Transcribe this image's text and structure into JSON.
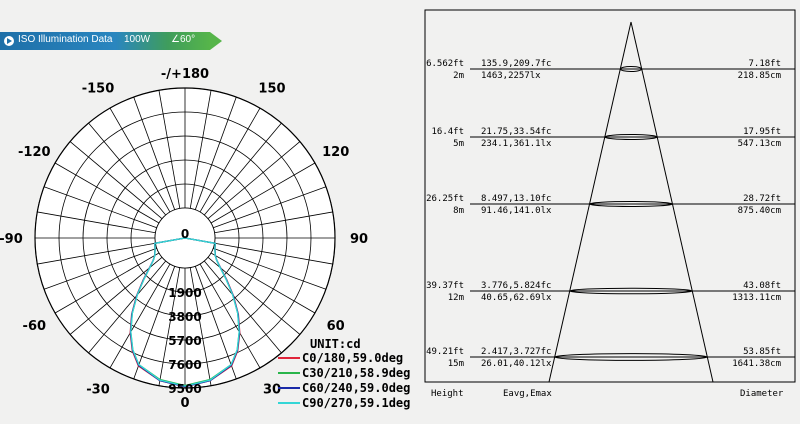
{
  "banner": {
    "title": "ISO Illumination  Data",
    "power": "100W",
    "angle": "∠60°",
    "icon": "play-circle-icon"
  },
  "chart_data": [
    {
      "type": "polar",
      "unit_label": "UNIT:cd",
      "angle_labels": [
        "-/+180",
        "150",
        "120",
        "90",
        "60",
        "30",
        "0",
        "-30",
        "-60",
        "-90",
        "-120",
        "-150"
      ],
      "radial_labels": [
        "0",
        "1900",
        "3800",
        "5700",
        "7600",
        "9500"
      ],
      "radial_values": [
        0,
        1900,
        3800,
        5700,
        7600,
        9500
      ],
      "rmax": 9500,
      "series": [
        {
          "name": "C0/180,59.0deg",
          "color": "#e0243a",
          "angles": [
            0,
            10,
            20,
            25,
            30,
            35,
            40,
            45,
            50,
            55,
            60,
            70,
            80,
            90
          ],
          "values": [
            9400,
            9100,
            8400,
            7500,
            6300,
            5000,
            3600,
            2300,
            1300,
            700,
            400,
            150,
            60,
            0
          ]
        },
        {
          "name": "C30/210,58.9deg",
          "color": "#29b54a",
          "angles": [
            0,
            10,
            20,
            25,
            30,
            35,
            40,
            45,
            50,
            55,
            60,
            70,
            80,
            90
          ],
          "values": [
            9300,
            9000,
            8300,
            7400,
            6200,
            4900,
            3500,
            2200,
            1250,
            680,
            390,
            140,
            55,
            0
          ]
        },
        {
          "name": "C60/240,59.0deg",
          "color": "#1a2aa8",
          "angles": [
            0,
            10,
            20,
            25,
            30,
            35,
            40,
            45,
            50,
            55,
            60,
            70,
            80,
            90
          ],
          "values": [
            9400,
            9100,
            8350,
            7450,
            6250,
            4950,
            3550,
            2250,
            1280,
            690,
            395,
            145,
            58,
            0
          ]
        },
        {
          "name": "C90/270,59.1deg",
          "color": "#33d6d6",
          "angles": [
            0,
            10,
            20,
            25,
            30,
            35,
            40,
            45,
            50,
            55,
            60,
            70,
            80,
            90
          ],
          "values": [
            9350,
            9050,
            8300,
            7400,
            6200,
            4900,
            3500,
            2200,
            1250,
            680,
            390,
            140,
            55,
            0
          ]
        }
      ]
    },
    {
      "type": "table",
      "columns": [
        "Height",
        "Eavg,Emax",
        "Diameter"
      ],
      "rows": [
        {
          "height_ft": "6.562ft",
          "height_m": "2m",
          "fc": "135.9,209.7fc",
          "lx": "1463,2257lx",
          "diam_ft": "7.18ft",
          "diam_cm": "218.85cm"
        },
        {
          "height_ft": "16.4ft",
          "height_m": "5m",
          "fc": "21.75,33.54fc",
          "lx": "234.1,361.1lx",
          "diam_ft": "17.95ft",
          "diam_cm": "547.13cm"
        },
        {
          "height_ft": "26.25ft",
          "height_m": "8m",
          "fc": "8.497,13.10fc",
          "lx": "91.46,141.0lx",
          "diam_ft": "28.72ft",
          "diam_cm": "875.40cm"
        },
        {
          "height_ft": "39.37ft",
          "height_m": "12m",
          "fc": "3.776,5.824fc",
          "lx": "40.65,62.69lx",
          "diam_ft": "43.08ft",
          "diam_cm": "1313.11cm"
        },
        {
          "height_ft": "49.21ft",
          "height_m": "15m",
          "fc": "2.417,3.727fc",
          "lx": "26.01,40.12lx",
          "diam_ft": "53.85ft",
          "diam_cm": "1641.38cm"
        }
      ]
    }
  ]
}
